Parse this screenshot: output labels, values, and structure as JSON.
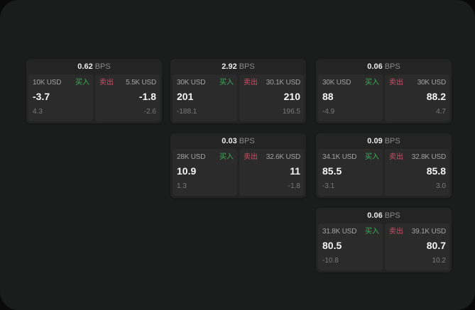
{
  "labels": {
    "buy": "买入",
    "sell": "卖出",
    "bps": "BPS"
  },
  "colors": {
    "buy": "#3fae5a",
    "sell": "#cf4f68",
    "window_bg": "#1b1c1c",
    "card_bg": "#232423",
    "panel_bg": "#2a2b2a",
    "value_text": "#f5f5f5",
    "muted_text": "#6f6f6f"
  },
  "cards": [
    {
      "bps": "0.62",
      "buy": {
        "amount": "10K USD",
        "value": "-3.7",
        "delta": "4.3"
      },
      "sell": {
        "amount": "5.5K USD",
        "value": "-1.8",
        "delta": "-2.6"
      }
    },
    {
      "bps": "2.92",
      "buy": {
        "amount": "30K USD",
        "value": "201",
        "delta": "-188.1"
      },
      "sell": {
        "amount": "30.1K USD",
        "value": "210",
        "delta": "196.5"
      }
    },
    {
      "bps": "0.06",
      "buy": {
        "amount": "30K USD",
        "value": "88",
        "delta": "-4.9"
      },
      "sell": {
        "amount": "30K USD",
        "value": "88.2",
        "delta": "4.7"
      }
    },
    {
      "bps": "0.03",
      "buy": {
        "amount": "28K USD",
        "value": "10.9",
        "delta": "1.3"
      },
      "sell": {
        "amount": "32.6K USD",
        "value": "11",
        "delta": "-1.8"
      }
    },
    {
      "bps": "0.09",
      "buy": {
        "amount": "34.1K USD",
        "value": "85.5",
        "delta": "-3.1"
      },
      "sell": {
        "amount": "32.8K USD",
        "value": "85.8",
        "delta": "3.0"
      }
    },
    {
      "bps": "0.06",
      "buy": {
        "amount": "31.8K USD",
        "value": "80.5",
        "delta": "-10.8"
      },
      "sell": {
        "amount": "39.1K USD",
        "value": "80.7",
        "delta": "10.2"
      }
    }
  ]
}
